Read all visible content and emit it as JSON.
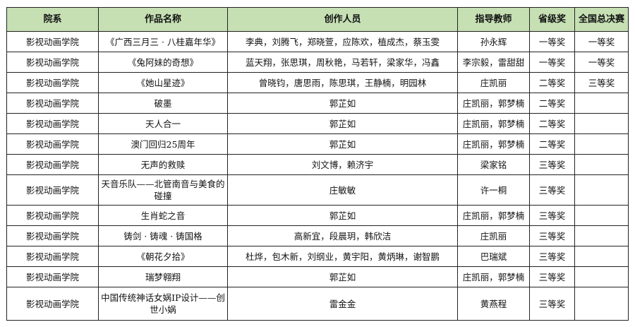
{
  "table": {
    "headers": [
      "院系",
      "作品名称",
      "创作人员",
      "指导教师",
      "省级奖",
      "全国总决赛"
    ],
    "header_color": "#c6e0b4",
    "rows": [
      [
        "影视动画学院",
        "《广西三月三 · 八桂嘉年华》",
        "李典，刘腾飞，郑晓萱，应陈欢，植成杰，蔡玉雯",
        "孙永辉",
        "一等奖",
        "一等奖"
      ],
      [
        "影视动画学院",
        "《兔阿妹的奇想》",
        "蓝天翔，张思琪，周秋艳，马若轩，梁家华，冯鑫",
        "李宗毅，雷甜甜",
        "一等奖",
        "一等奖"
      ],
      [
        "影视动画学院",
        "《她山星迹》",
        "曾晓钧，唐思雨，陈思琪，王静楠，明园林",
        "庄凯丽",
        "二等奖",
        "三等奖"
      ],
      [
        "影视动画学院",
        "破墨",
        "郭芷如",
        "庄凯丽，郭梦楠",
        "二等奖",
        ""
      ],
      [
        "影视动画学院",
        "天人合一",
        "郭芷如",
        "庄凯丽，郭梦楠",
        "二等奖",
        ""
      ],
      [
        "影视动画学院",
        "澳门回归25周年",
        "郭芷如",
        "庄凯丽，郭梦楠",
        "二等奖",
        ""
      ],
      [
        "影视动画学院",
        "无声的救赎",
        "刘文博，赖济宇",
        "梁家铭",
        "三等奖",
        ""
      ],
      [
        "影视动画学院",
        "天音乐队——北管南音与美食的碰撞",
        "庄敏敏",
        "许一桐",
        "三等奖",
        ""
      ],
      [
        "影视动画学院",
        "生肖蛇之音",
        "郭芷如",
        "庄凯丽，郭梦楠",
        "三等奖",
        ""
      ],
      [
        "影视动画学院",
        "铸剑 · 铸魂 · 铸国格",
        "高新宜，段晨玥，韩欣洁",
        "庄凯丽",
        "三等奖",
        ""
      ],
      [
        "影视动画学院",
        "《朝花夕拾》",
        "杜烨，包木新，刘纲业，黄宇阳，黄炳琳，谢智鹏",
        "巴瑞斌",
        "三等奖",
        ""
      ],
      [
        "影视动画学院",
        "瑞梦翱翔",
        "郭芷如",
        "庄凯丽，郭梦楠",
        "三等奖",
        ""
      ],
      [
        "影视动画学院",
        "中国传统神话女娲IP设计——创世小娲",
        "雷金金",
        "黄燕程",
        "三等奖",
        ""
      ]
    ]
  }
}
